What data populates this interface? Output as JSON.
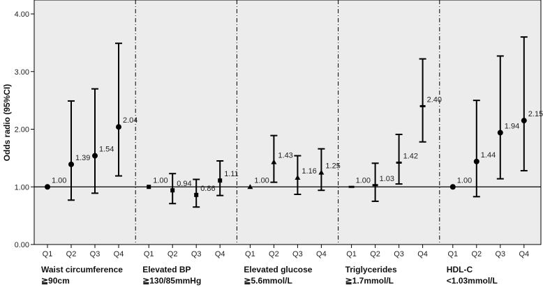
{
  "chart_data": {
    "type": "scatter",
    "subtype": "forest-plot-with-error-bars",
    "ylabel": "Odds radio (95%CI)",
    "ylim": [
      0,
      4
    ],
    "yticks": [
      "0.00",
      "1.00",
      "2.00",
      "3.00",
      "4.00"
    ],
    "reference_line": 1.0,
    "grid": false,
    "background": "#ececec",
    "marker_color": "#000000",
    "groups": [
      {
        "label_line1": "Waist circumference",
        "label_line2": "≧90cm",
        "marker": "circle",
        "points": [
          {
            "q": "Q1",
            "or": 1.0,
            "label": "1.00",
            "lo": null,
            "hi": null
          },
          {
            "q": "Q2",
            "or": 1.39,
            "label": "1.39",
            "lo": 0.77,
            "hi": 2.49
          },
          {
            "q": "Q3",
            "or": 1.54,
            "label": "1.54",
            "lo": 0.89,
            "hi": 2.7
          },
          {
            "q": "Q4",
            "or": 2.04,
            "label": "2.04",
            "lo": 1.19,
            "hi": 3.49
          }
        ]
      },
      {
        "label_line1": "Elevated BP",
        "label_line2": "≧130/85mmHg",
        "marker": "square",
        "points": [
          {
            "q": "Q1",
            "or": 1.0,
            "label": "1.00",
            "lo": null,
            "hi": null
          },
          {
            "q": "Q2",
            "or": 0.94,
            "label": "0.94",
            "lo": 0.71,
            "hi": 1.23
          },
          {
            "q": "Q3",
            "or": 0.86,
            "label": "0.86",
            "lo": 0.65,
            "hi": 1.13
          },
          {
            "q": "Q4",
            "or": 1.11,
            "label": "1.11",
            "lo": 0.85,
            "hi": 1.45
          }
        ]
      },
      {
        "label_line1": "Elevated glucose",
        "label_line2": "≧5.6mmol/L",
        "marker": "triangle",
        "points": [
          {
            "q": "Q1",
            "or": 1.0,
            "label": "1.00",
            "lo": null,
            "hi": null
          },
          {
            "q": "Q2",
            "or": 1.43,
            "label": "1.43",
            "lo": 1.08,
            "hi": 1.89
          },
          {
            "q": "Q3",
            "or": 1.16,
            "label": "1.16",
            "lo": 0.87,
            "hi": 1.54
          },
          {
            "q": "Q4",
            "or": 1.25,
            "label": "1.25",
            "lo": 0.94,
            "hi": 1.66
          }
        ]
      },
      {
        "label_line1": "Triglycerides",
        "label_line2": "≧1.7mmol/L",
        "marker": "dash",
        "points": [
          {
            "q": "Q1",
            "or": 1.0,
            "label": "1.00",
            "lo": null,
            "hi": null
          },
          {
            "q": "Q2",
            "or": 1.03,
            "label": "1.03",
            "lo": 0.75,
            "hi": 1.41
          },
          {
            "q": "Q3",
            "or": 1.42,
            "label": "1.42",
            "lo": 1.05,
            "hi": 1.91
          },
          {
            "q": "Q4",
            "or": 2.4,
            "label": "2.40",
            "lo": 1.78,
            "hi": 3.22
          }
        ]
      },
      {
        "label_line1": "HDL-C",
        "label_line2": "<1.03mmol/L",
        "marker": "circle",
        "points": [
          {
            "q": "Q1",
            "or": 1.0,
            "label": "1.00",
            "lo": null,
            "hi": null
          },
          {
            "q": "Q2",
            "or": 1.44,
            "label": "1.44",
            "lo": 0.83,
            "hi": 2.5
          },
          {
            "q": "Q3",
            "or": 1.94,
            "label": "1.94",
            "lo": 1.14,
            "hi": 3.27
          },
          {
            "q": "Q4",
            "or": 2.15,
            "label": "2.15",
            "lo": 1.28,
            "hi": 3.6
          }
        ]
      }
    ]
  }
}
